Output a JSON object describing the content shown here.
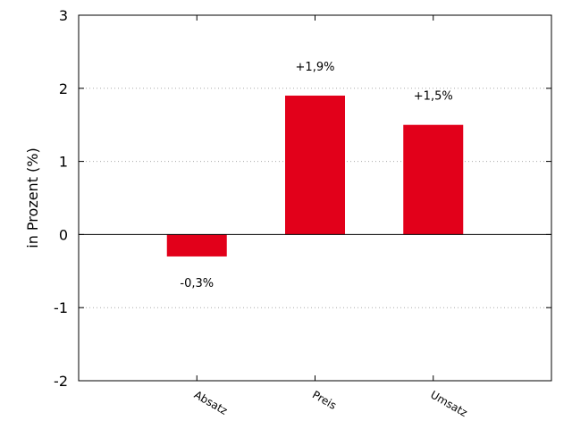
{
  "chart_data": {
    "type": "bar",
    "categories": [
      "Absatz",
      "Preis",
      "Umsatz"
    ],
    "values": [
      -0.3,
      1.9,
      1.5
    ],
    "data_labels": [
      "-0,3%",
      "+1,9%",
      "+1,5%"
    ],
    "ylabel": "in Prozent (%)",
    "ylim": [
      -2,
      3
    ],
    "yticks": [
      -2,
      -1,
      0,
      1,
      2,
      3
    ],
    "ytick_labels": [
      "-2",
      "-1",
      "0",
      "1",
      "2",
      "3"
    ],
    "grid": "horizontal dotted",
    "bar_color": "#e2001a",
    "grid_color": "#aaaaaa",
    "zero_line_color": "#000000"
  }
}
